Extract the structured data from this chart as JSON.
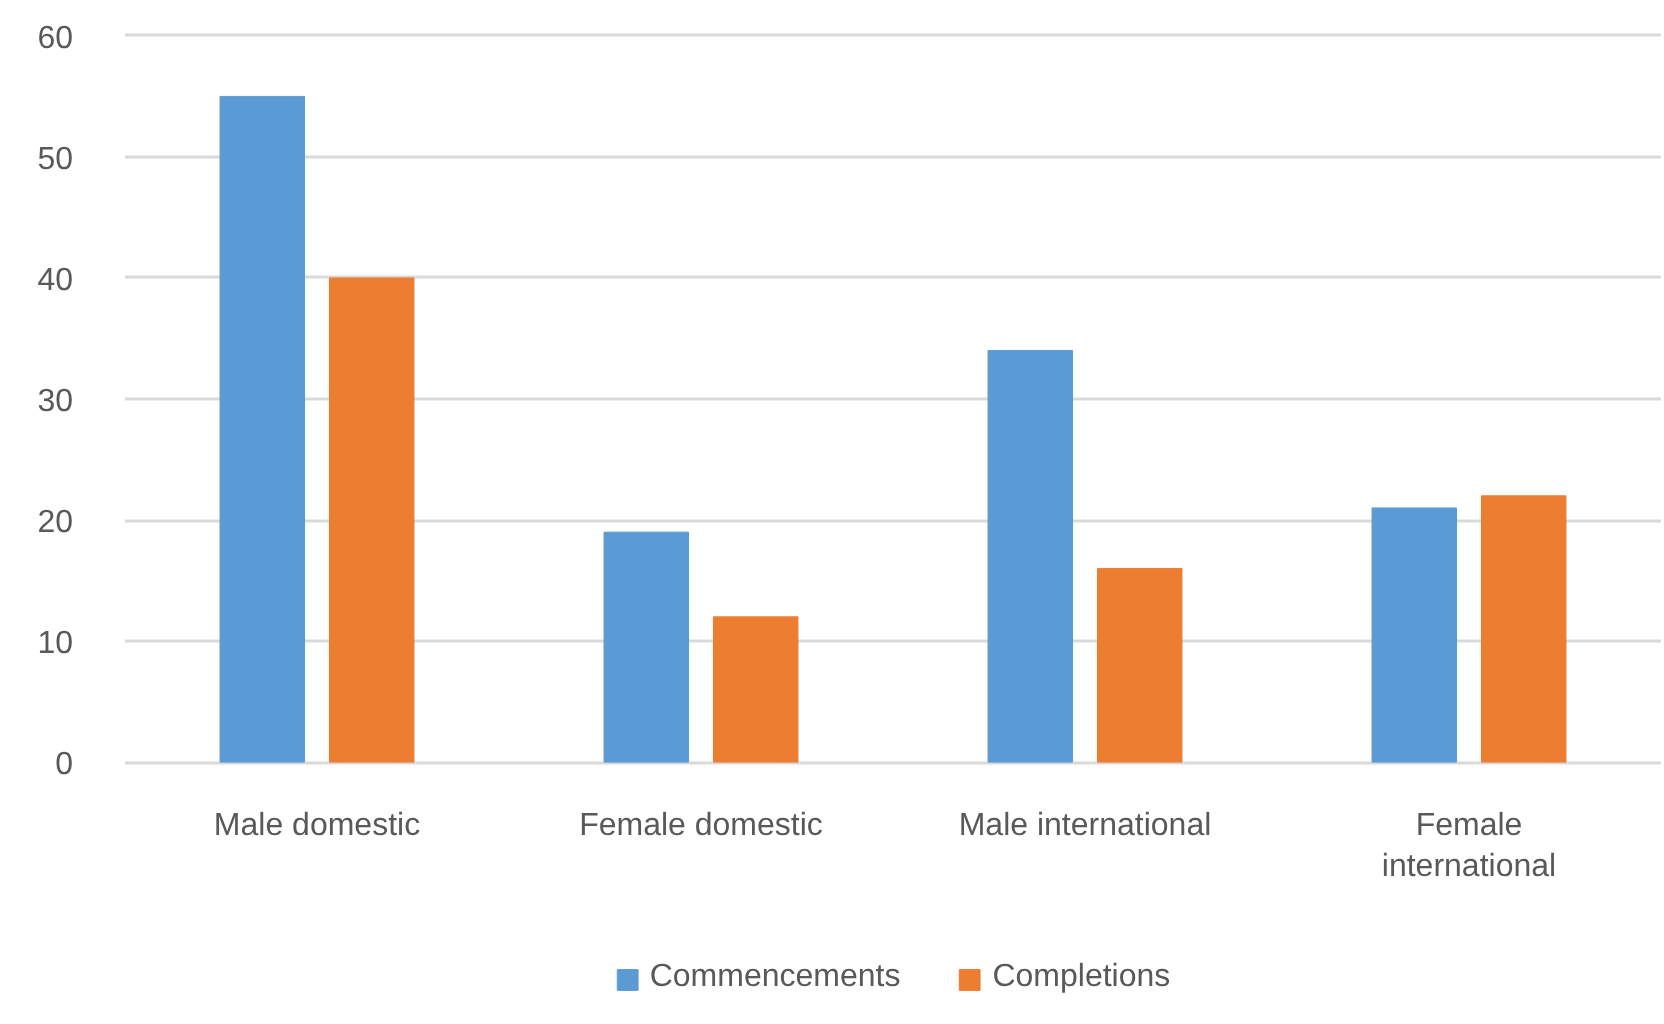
{
  "chart_data": {
    "type": "bar",
    "categories": [
      "Male domestic",
      "Female domestic",
      "Male international",
      "Female international"
    ],
    "series": [
      {
        "name": "Commencements",
        "color": "#5b9bd5",
        "values": [
          55,
          19,
          34,
          21
        ]
      },
      {
        "name": "Completions",
        "color": "#ed7d31",
        "values": [
          40,
          12,
          16,
          22
        ]
      }
    ],
    "ylim": [
      0,
      60
    ],
    "yticks": [
      0,
      10,
      20,
      30,
      40,
      50,
      60
    ],
    "grid": "y",
    "legend": "bottom"
  }
}
